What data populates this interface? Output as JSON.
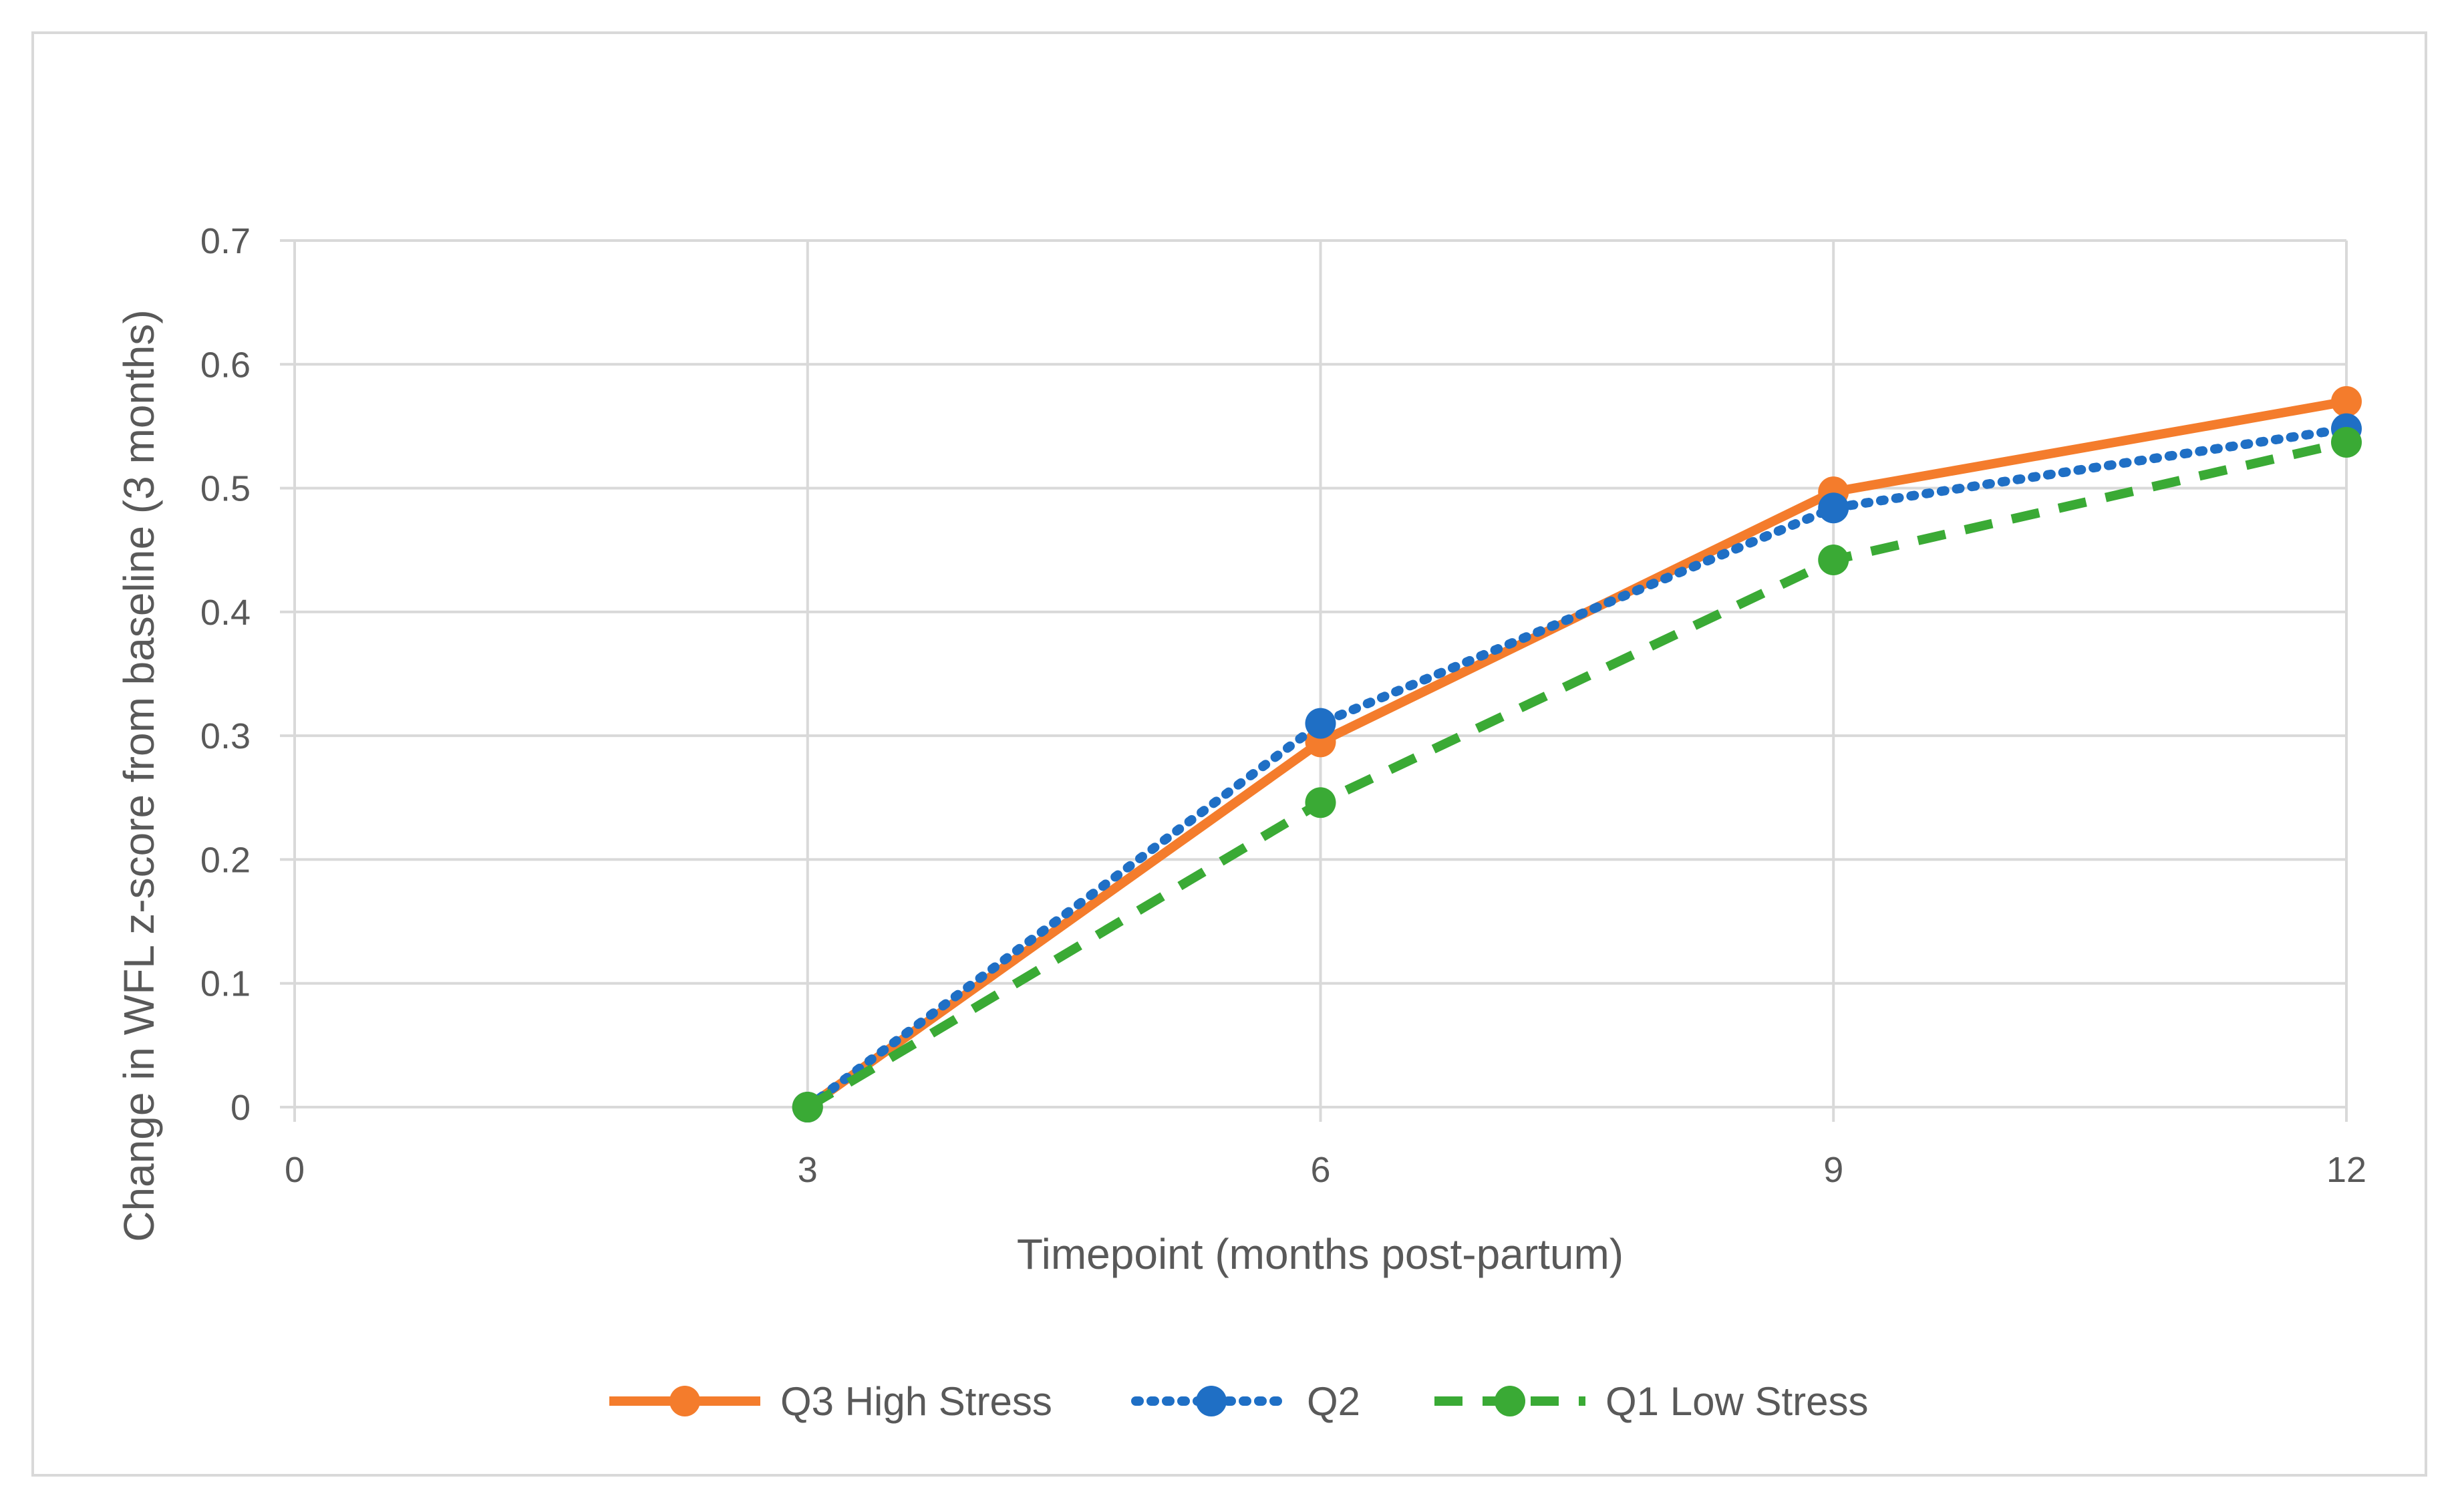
{
  "chart_data": {
    "type": "line",
    "title": "",
    "xlabel": "Timepoint (months post-partum)",
    "ylabel": "Change in WFL z-score from baseline (3 months)",
    "xlim": [
      0,
      12
    ],
    "ylim": [
      0,
      0.7
    ],
    "x_ticks": [
      0,
      3,
      6,
      9,
      12
    ],
    "y_ticks": [
      0,
      0.1,
      0.2,
      0.3,
      0.4,
      0.5,
      0.6,
      0.7
    ],
    "grid": true,
    "legend_position": "bottom",
    "series": [
      {
        "name": "Q3 High Stress",
        "x": [
          3,
          6,
          9,
          12
        ],
        "values": [
          0,
          0.295,
          0.497,
          0.57
        ],
        "color": "#f47c2c",
        "line_style": "solid"
      },
      {
        "name": "Q2",
        "x": [
          3,
          6,
          9,
          12
        ],
        "values": [
          0,
          0.31,
          0.484,
          0.548
        ],
        "color": "#1f6fc5",
        "line_style": "dotted"
      },
      {
        "name": "Q1 Low Stress",
        "x": [
          3,
          6,
          9,
          12
        ],
        "values": [
          0,
          0.246,
          0.442,
          0.537
        ],
        "color": "#3aaa35",
        "line_style": "dashed"
      }
    ]
  }
}
